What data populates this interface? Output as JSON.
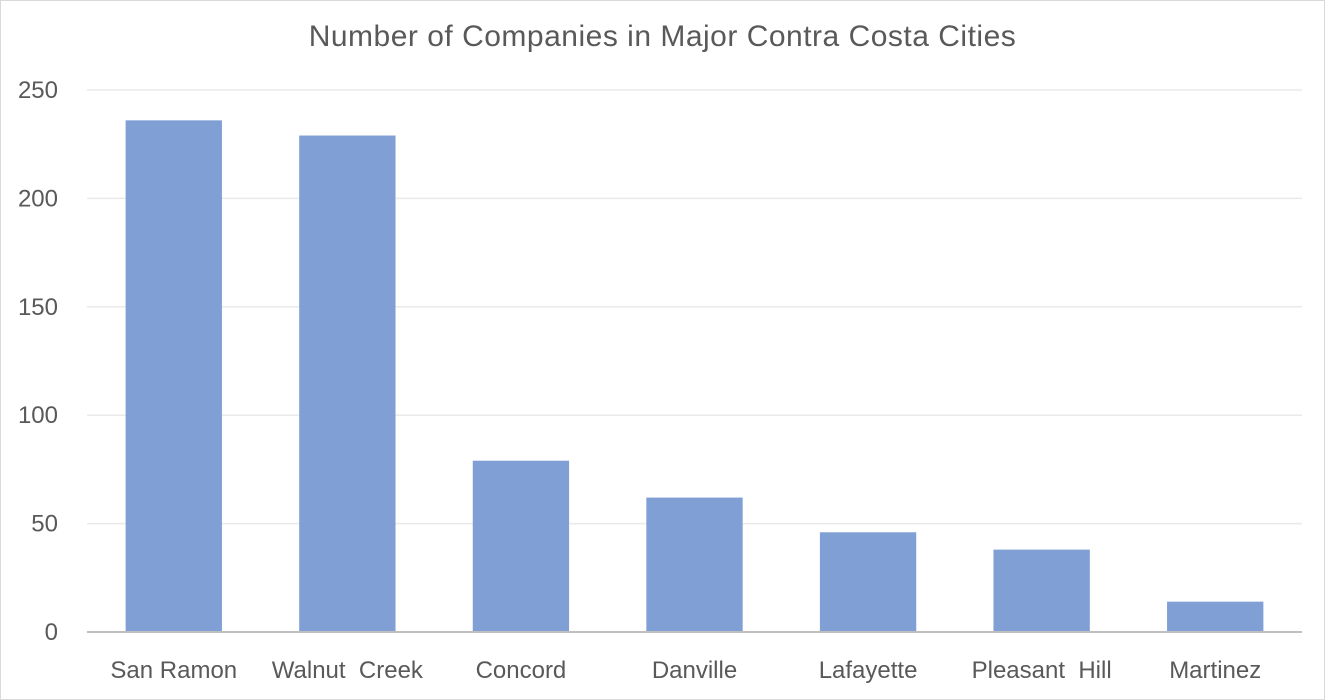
{
  "chart_data": {
    "type": "bar",
    "title": "Number of Companies in Major Contra Costa Cities",
    "categories": [
      "San Ramon",
      "Walnut  Creek",
      "Concord",
      "Danville",
      "Lafayette",
      "Pleasant  Hill",
      "Martinez"
    ],
    "values": [
      236,
      229,
      79,
      62,
      46,
      38,
      14
    ],
    "ylim": [
      0,
      250
    ],
    "yticks": [
      0,
      50,
      100,
      150,
      200,
      250
    ],
    "xlabel": "",
    "ylabel": "",
    "grid": true,
    "legend": "none",
    "bar_color": "#7f9fd5",
    "grid_color": "#eaeaea",
    "axis_color": "#bfbfbf",
    "text_color": "#595959"
  }
}
